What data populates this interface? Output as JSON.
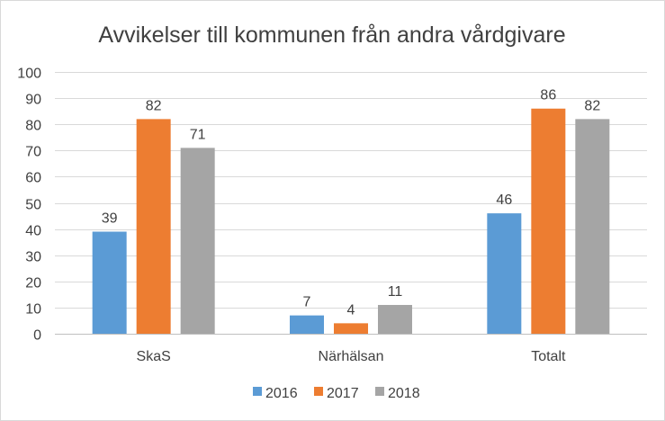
{
  "chart_data": {
    "type": "bar",
    "title": "Avvikelser till kommunen från andra vårdgivare",
    "categories": [
      "SkaS",
      "Närhälsan",
      "Totalt"
    ],
    "series": [
      {
        "name": "2016",
        "color": "#5b9bd5",
        "values": [
          39,
          7,
          46
        ]
      },
      {
        "name": "2017",
        "color": "#ed7d31",
        "values": [
          82,
          4,
          86
        ]
      },
      {
        "name": "2018",
        "color": "#a5a5a5",
        "values": [
          71,
          11,
          82
        ]
      }
    ],
    "ylim": [
      0,
      100
    ],
    "yticks": [
      0,
      10,
      20,
      30,
      40,
      50,
      60,
      70,
      80,
      90,
      100
    ],
    "grid": true,
    "legend": "bottom",
    "xlabel": "",
    "ylabel": ""
  }
}
